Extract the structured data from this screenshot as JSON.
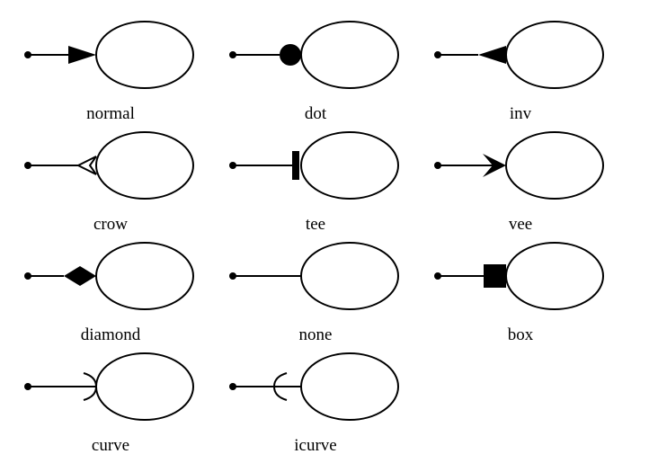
{
  "diagram": {
    "cells": [
      {
        "label": "normal",
        "arrow": "normal"
      },
      {
        "label": "dot",
        "arrow": "dot"
      },
      {
        "label": "inv",
        "arrow": "inv"
      },
      {
        "label": "crow",
        "arrow": "crow"
      },
      {
        "label": "tee",
        "arrow": "tee"
      },
      {
        "label": "vee",
        "arrow": "vee"
      },
      {
        "label": "diamond",
        "arrow": "diamond"
      },
      {
        "label": "none",
        "arrow": "none"
      },
      {
        "label": "box",
        "arrow": "box"
      },
      {
        "label": "curve",
        "arrow": "curve"
      },
      {
        "label": "icurve",
        "arrow": "icurve"
      }
    ]
  },
  "colors": {
    "stroke": "#000000",
    "background": "#ffffff"
  }
}
